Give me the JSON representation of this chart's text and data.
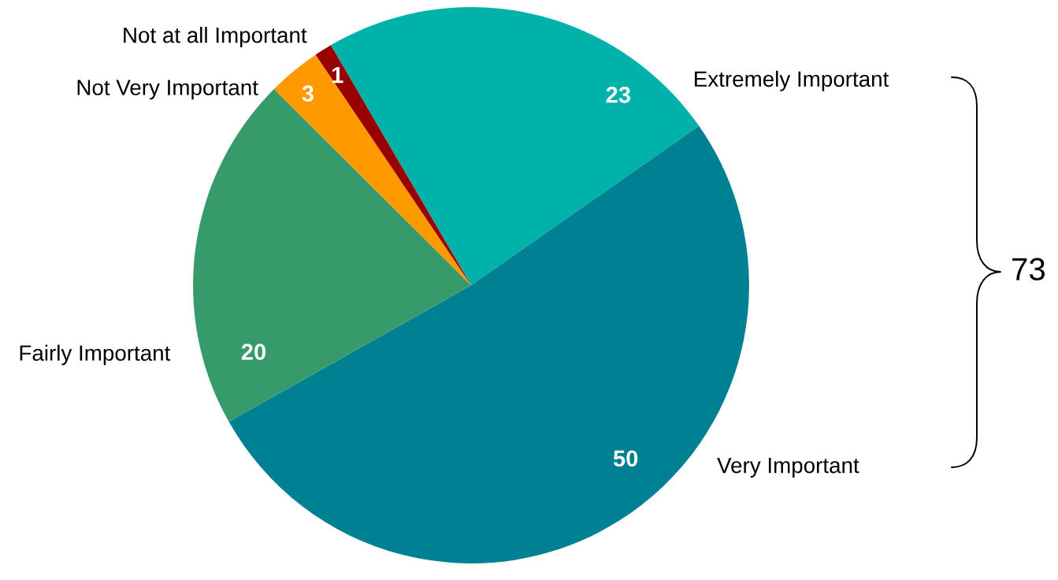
{
  "chart_data": {
    "type": "pie",
    "categories": [
      "Extremely Important",
      "Very Important",
      "Fairly Important",
      "Not Very Important",
      "Not at all Important"
    ],
    "values": [
      23,
      50,
      20,
      3,
      1
    ],
    "colors": [
      "#00b2a9",
      "#008093",
      "#379a6a",
      "#ff9900",
      "#990000"
    ],
    "data_labels": true,
    "annotations": [
      "73"
    ]
  }
}
